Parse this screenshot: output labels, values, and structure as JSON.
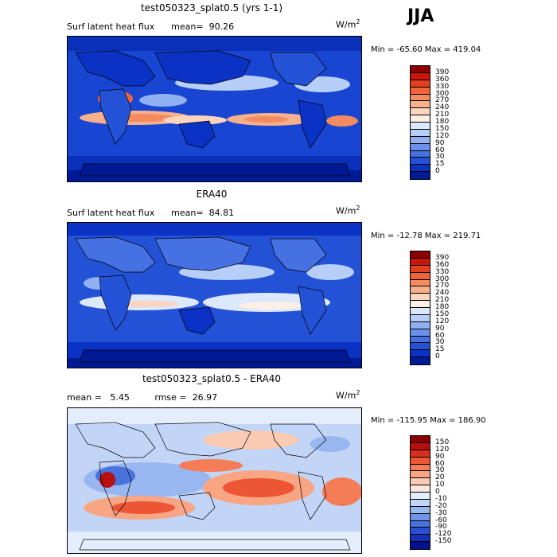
{
  "season_label": "JJA",
  "panels": [
    {
      "title": "test050323_splat0.5 (yrs 1-1)",
      "subtitle": "Surf latent heat flux      mean=  90.26",
      "units_text": "W/m",
      "units_sup": "2",
      "minmax": "Min = -65.60 Max = 419.04",
      "colorbar": {
        "labels": [
          "390",
          "360",
          "330",
          "300",
          "270",
          "240",
          "210",
          "180",
          "150",
          "120",
          "90",
          "60",
          "30",
          "15",
          "0"
        ],
        "colors": [
          "#8b0000",
          "#c8160a",
          "#e2401e",
          "#f0643c",
          "#f48b60",
          "#f7b08c",
          "#fad4bc",
          "#fcefe6",
          "#dce8fb",
          "#b6cef8",
          "#8fb0f2",
          "#6b90ea",
          "#4571e2",
          "#2452d6",
          "#0a32c4",
          "#001a96"
        ]
      }
    },
    {
      "title": "ERA40",
      "subtitle": "Surf latent heat flux      mean=  84.81",
      "units_text": "W/m",
      "units_sup": "2",
      "minmax": "Min = -12.78 Max = 219.71",
      "colorbar": {
        "labels": [
          "390",
          "360",
          "330",
          "300",
          "270",
          "240",
          "210",
          "180",
          "150",
          "120",
          "90",
          "60",
          "30",
          "15",
          "0"
        ],
        "colors": [
          "#8b0000",
          "#c8160a",
          "#e2401e",
          "#f0643c",
          "#f48b60",
          "#f7b08c",
          "#fad4bc",
          "#fcefe6",
          "#dce8fb",
          "#b6cef8",
          "#8fb0f2",
          "#6b90ea",
          "#4571e2",
          "#2452d6",
          "#0a32c4",
          "#001a96"
        ]
      }
    },
    {
      "title": "test050323_splat0.5 - ERA40",
      "subtitle": "mean =   5.45         rmse =  26.97",
      "units_text": "W/m",
      "units_sup": "2",
      "minmax": "Min = -115.95 Max = 186.90",
      "colorbar": {
        "labels": [
          "150",
          "120",
          "90",
          "60",
          "30",
          "20",
          "10",
          "0",
          "-10",
          "-20",
          "-30",
          "-60",
          "-90",
          "-120",
          "-150"
        ],
        "colors": [
          "#8b0000",
          "#b8100c",
          "#d8301c",
          "#ec5634",
          "#f47d58",
          "#f8a584",
          "#fbcab2",
          "#fde7dc",
          "#e3edfb",
          "#c2d5f7",
          "#98b6f0",
          "#7094e6",
          "#4a72dc",
          "#2a4fcf",
          "#1230b8",
          "#06128a"
        ]
      }
    }
  ],
  "chart_data": [
    {
      "type": "heatmap",
      "title": "test050323_splat0.5 (yrs 1-1)",
      "field": "Surf latent heat flux",
      "mean": 90.26,
      "min": -65.6,
      "max": 419.04,
      "units": "W/m2",
      "contour_levels": [
        0,
        15,
        30,
        60,
        90,
        120,
        150,
        180,
        210,
        240,
        270,
        300,
        330,
        360,
        390
      ]
    },
    {
      "type": "heatmap",
      "title": "ERA40",
      "field": "Surf latent heat flux",
      "mean": 84.81,
      "min": -12.78,
      "max": 219.71,
      "units": "W/m2",
      "contour_levels": [
        0,
        15,
        30,
        60,
        90,
        120,
        150,
        180,
        210,
        240,
        270,
        300,
        330,
        360,
        390
      ]
    },
    {
      "type": "heatmap",
      "title": "test050323_splat0.5 - ERA40",
      "mean": 5.45,
      "rmse": 26.97,
      "min": -115.95,
      "max": 186.9,
      "units": "W/m2",
      "contour_levels": [
        -150,
        -120,
        -90,
        -60,
        -30,
        -20,
        -10,
        0,
        10,
        20,
        30,
        60,
        90,
        120,
        150
      ]
    }
  ]
}
